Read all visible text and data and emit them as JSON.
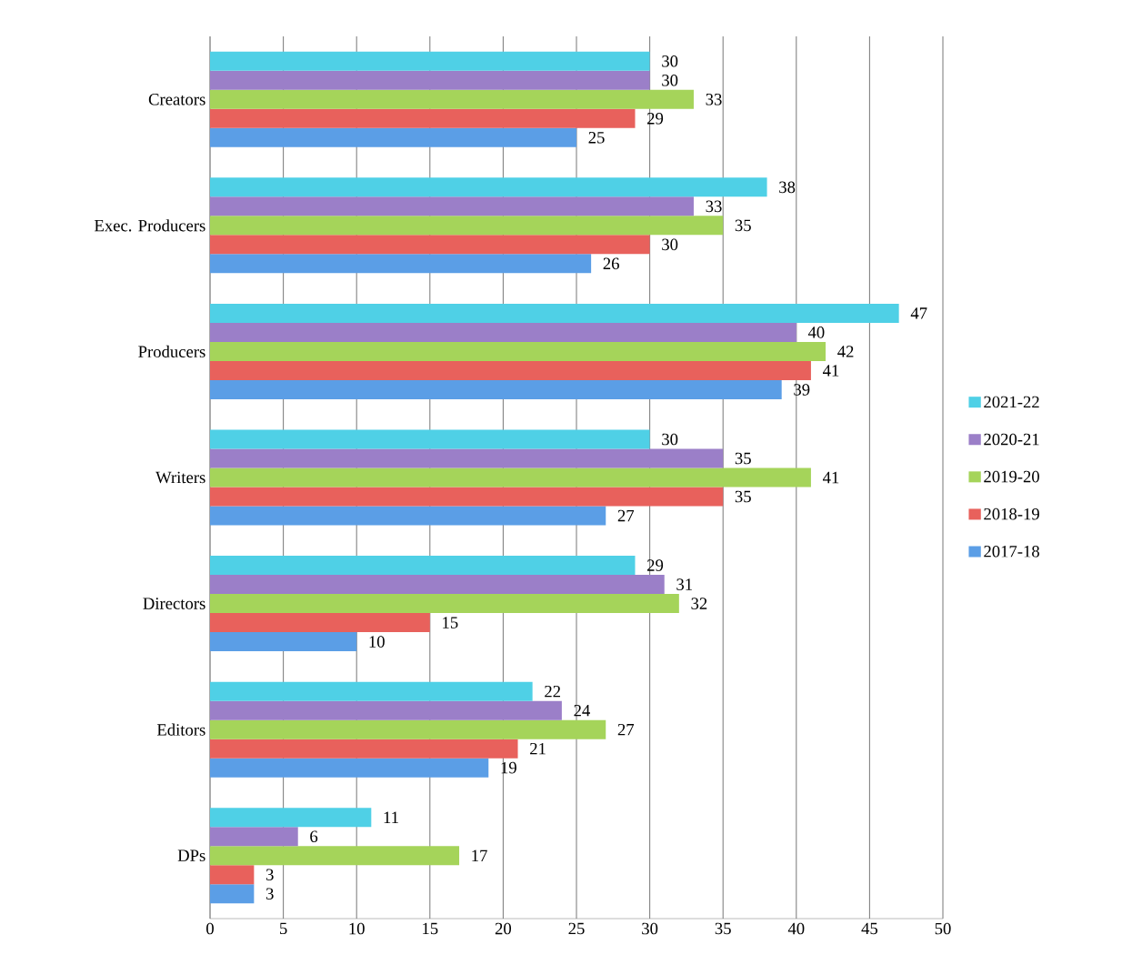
{
  "chart_data": {
    "type": "bar",
    "orientation": "horizontal",
    "categories": [
      "Creators",
      "Exec. Producers",
      "Producers",
      "Writers",
      "Directors",
      "Editors",
      "DPs"
    ],
    "series": [
      {
        "name": "2017-18",
        "color": "#5b9ee6",
        "values": [
          25,
          26,
          39,
          27,
          10,
          19,
          3
        ]
      },
      {
        "name": "2018-19",
        "color": "#e8615c",
        "values": [
          29,
          30,
          41,
          35,
          15,
          21,
          3
        ]
      },
      {
        "name": "2019-20",
        "color": "#a5d45a",
        "values": [
          33,
          35,
          42,
          41,
          32,
          27,
          17
        ]
      },
      {
        "name": "2020-21",
        "color": "#9b7fc8",
        "values": [
          30,
          33,
          40,
          35,
          31,
          24,
          6
        ]
      },
      {
        "name": "2021-22",
        "color": "#4fd0e6",
        "values": [
          30,
          38,
          47,
          30,
          29,
          22,
          11
        ]
      }
    ],
    "xlim": [
      0,
      50
    ],
    "xticks": [
      0,
      5,
      10,
      15,
      20,
      25,
      30,
      35,
      40,
      45,
      50
    ],
    "grid": "x",
    "legend": "right",
    "data_labels": true
  }
}
